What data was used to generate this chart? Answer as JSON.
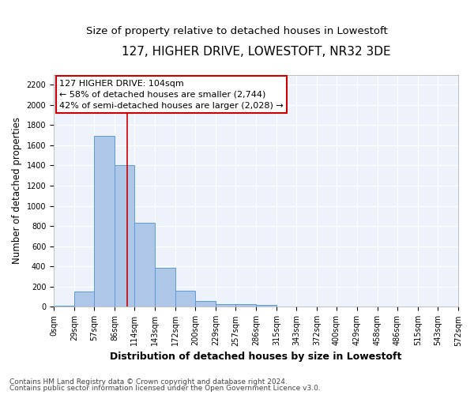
{
  "title": "127, HIGHER DRIVE, LOWESTOFT, NR32 3DE",
  "subtitle": "Size of property relative to detached houses in Lowestoft",
  "xlabel": "Distribution of detached houses by size in Lowestoft",
  "ylabel": "Number of detached properties",
  "footer_line1": "Contains HM Land Registry data © Crown copyright and database right 2024.",
  "footer_line2": "Contains public sector information licensed under the Open Government Licence v3.0.",
  "annotation_line1": "127 HIGHER DRIVE: 104sqm",
  "annotation_line2": "← 58% of detached houses are smaller (2,744)",
  "annotation_line3": "42% of semi-detached houses are larger (2,028) →",
  "property_size": 104,
  "bin_edges": [
    0,
    29,
    57,
    86,
    114,
    143,
    172,
    200,
    229,
    257,
    286,
    315,
    343,
    372,
    400,
    429,
    458,
    486,
    515,
    543,
    572
  ],
  "bar_heights": [
    10,
    150,
    1690,
    1400,
    830,
    390,
    160,
    60,
    30,
    25,
    20,
    5,
    0,
    0,
    0,
    0,
    0,
    0,
    0,
    0
  ],
  "bar_color": "#aec6e8",
  "bar_edge_color": "#5b9bd5",
  "vline_color": "#cc0000",
  "vline_x": 104,
  "ylim": [
    0,
    2300
  ],
  "yticks": [
    0,
    200,
    400,
    600,
    800,
    1000,
    1200,
    1400,
    1600,
    1800,
    2000,
    2200
  ],
  "plot_background": "#eef2fb",
  "title_fontsize": 11,
  "subtitle_fontsize": 9.5,
  "tick_label_fontsize": 7,
  "ylabel_fontsize": 8.5,
  "xlabel_fontsize": 9,
  "annotation_fontsize": 8,
  "footer_fontsize": 6.5
}
